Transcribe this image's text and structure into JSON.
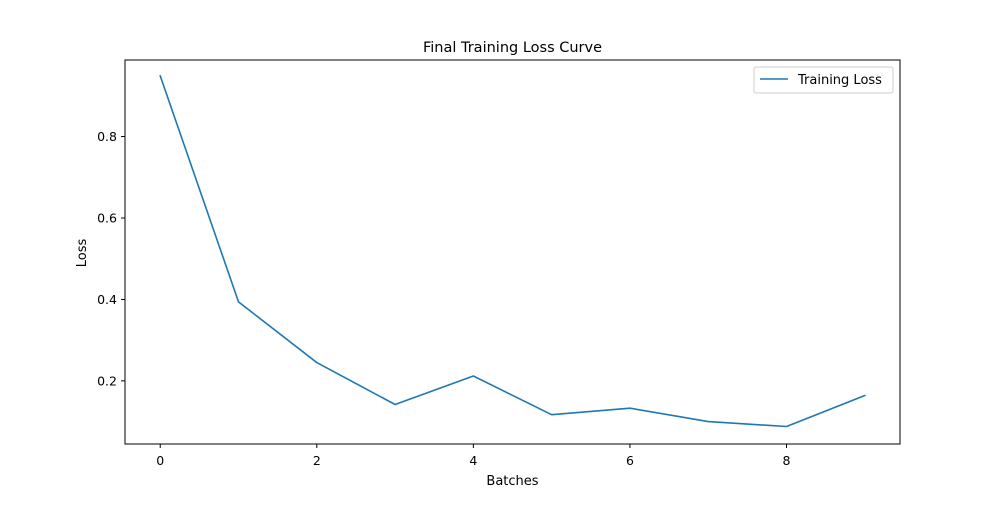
{
  "chart_data": {
    "type": "line",
    "title": "Final Training Loss Curve",
    "xlabel": "Batches",
    "ylabel": "Loss",
    "xlim": [
      -0.45,
      9.45
    ],
    "ylim": [
      0.045,
      0.988
    ],
    "x_ticks": [
      0,
      2,
      4,
      6,
      8
    ],
    "y_ticks": [
      0.2,
      0.4,
      0.6,
      0.8
    ],
    "x_tick_labels": [
      "0",
      "2",
      "4",
      "6",
      "8"
    ],
    "y_tick_labels": [
      "0.2",
      "0.4",
      "0.6",
      "0.8"
    ],
    "grid": false,
    "legend_position": "top-right",
    "series": [
      {
        "name": "Training Loss",
        "color": "#1f77b4",
        "x": [
          0,
          1,
          2,
          3,
          4,
          5,
          6,
          7,
          8,
          9
        ],
        "y": [
          0.949,
          0.394,
          0.245,
          0.142,
          0.212,
          0.117,
          0.133,
          0.1,
          0.088,
          0.164
        ]
      }
    ]
  }
}
